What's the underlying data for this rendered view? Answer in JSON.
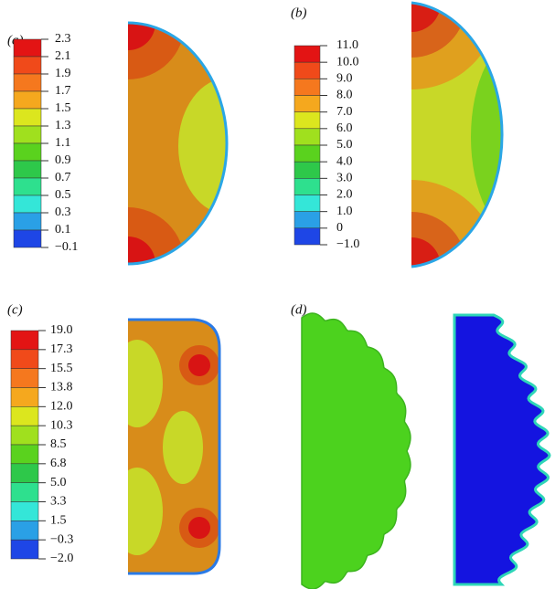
{
  "panels": [
    {
      "label": "(a)",
      "colorbar": [
        "2.3",
        "2.1",
        "1.9",
        "1.7",
        "1.5",
        "1.3",
        "1.1",
        "0.9",
        "0.7",
        "0.5",
        "0.3",
        "0.1",
        "−0.1"
      ]
    },
    {
      "label": "(b)",
      "colorbar": [
        "11.0",
        "10.0",
        "9.0",
        "8.0",
        "7.0",
        "6.0",
        "5.0",
        "4.0",
        "3.0",
        "2.0",
        "1.0",
        "0",
        "−1.0"
      ]
    },
    {
      "label": "(c)",
      "colorbar": [
        "19.0",
        "17.3",
        "15.5",
        "13.8",
        "12.0",
        "10.3",
        "8.5",
        "6.8",
        "5.0",
        "3.3",
        "1.5",
        "−0.3",
        "−2.0"
      ]
    },
    {
      "label": "(d)"
    }
  ]
}
